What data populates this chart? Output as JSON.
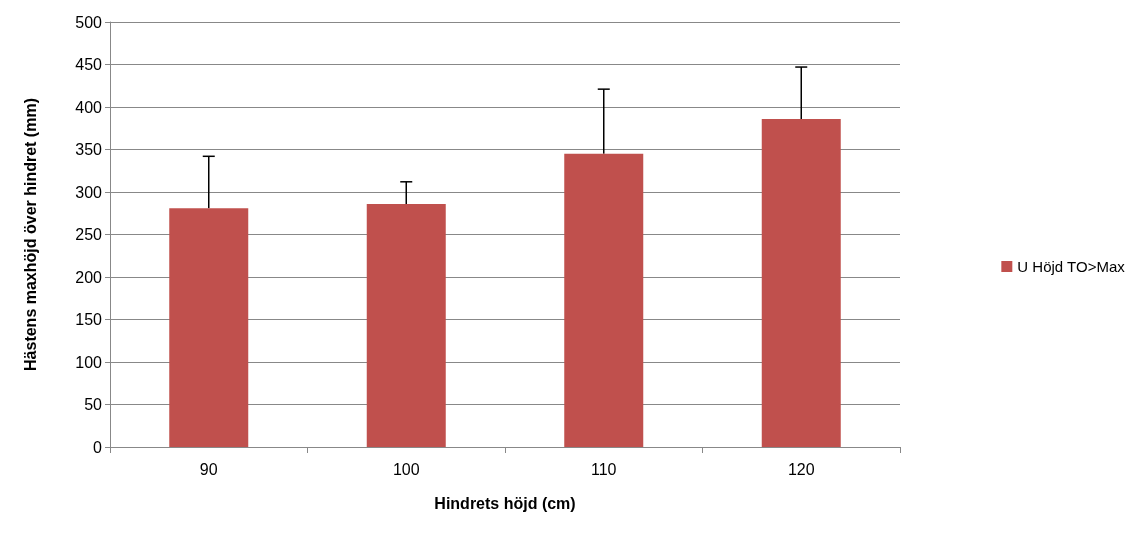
{
  "chart_data": {
    "type": "bar",
    "xlabel": "Hindrets höjd (cm)",
    "ylabel": "Hästens maxhöjd över hindret (mm)",
    "categories": [
      "90",
      "100",
      "110",
      "120"
    ],
    "series": [
      {
        "name": "U Höjd TO>Max",
        "color": "#c0504d",
        "values": [
          281,
          286,
          345,
          386
        ],
        "errors": [
          [
            281,
            342
          ],
          [
            286,
            312
          ],
          [
            345,
            421
          ],
          [
            386,
            447
          ]
        ]
      }
    ],
    "ylim": [
      0,
      500
    ],
    "yticks": [
      0,
      50,
      100,
      150,
      200,
      250,
      300,
      350,
      400,
      450,
      500
    ],
    "grid": "y",
    "legend": "right"
  }
}
